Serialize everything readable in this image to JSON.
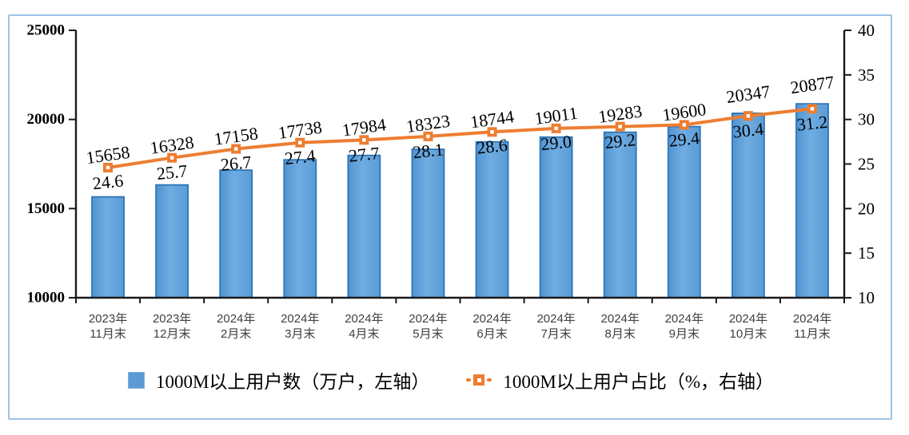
{
  "chart_data": {
    "type": "combo_bar_line",
    "title": "",
    "grid": false,
    "legend_position": "bottom",
    "categories": [
      {
        "line1": "2023年",
        "line2": "11月末"
      },
      {
        "line1": "2023年",
        "line2": "12月末"
      },
      {
        "line1": "2024年",
        "line2": "2月末"
      },
      {
        "line1": "2024年",
        "line2": "3月末"
      },
      {
        "line1": "2024年",
        "line2": "4月末"
      },
      {
        "line1": "2024年",
        "line2": "5月末"
      },
      {
        "line1": "2024年",
        "line2": "6月末"
      },
      {
        "line1": "2024年",
        "line2": "7月末"
      },
      {
        "line1": "2024年",
        "line2": "8月末"
      },
      {
        "line1": "2024年",
        "line2": "9月末"
      },
      {
        "line1": "2024年",
        "line2": "10月末"
      },
      {
        "line1": "2024年",
        "line2": "11月末"
      }
    ],
    "series": [
      {
        "name": "1000M以上用户数（万户，左轴）",
        "type": "bar",
        "axis": "left",
        "values": [
          15658,
          16328,
          17158,
          17738,
          17984,
          18323,
          18744,
          19011,
          19283,
          19600,
          20347,
          20877
        ],
        "data_labels": [
          "15658",
          "16328",
          "17158",
          "17738",
          "17984",
          "18323",
          "18744",
          "19011",
          "19283",
          "19600",
          "20347",
          "20877"
        ]
      },
      {
        "name": "1000M以上用户占比（%，右轴）",
        "type": "line",
        "axis": "right",
        "values": [
          24.6,
          25.7,
          26.7,
          27.4,
          27.7,
          28.1,
          28.6,
          29.0,
          29.2,
          29.4,
          30.4,
          31.2
        ],
        "data_labels": [
          "24.6",
          "25.7",
          "26.7",
          "27.4",
          "27.7",
          "28.1",
          "28.6",
          "29.0",
          "29.2",
          "29.4",
          "30.4",
          "31.2"
        ]
      }
    ],
    "left_axis": {
      "min": 10000,
      "max": 25000,
      "step": 5000,
      "tick_labels": [
        "10000",
        "15000",
        "20000",
        "25000"
      ]
    },
    "right_axis": {
      "min": 10,
      "max": 40,
      "step": 5,
      "tick_labels": [
        "10",
        "15",
        "20",
        "25",
        "30",
        "35",
        "40"
      ]
    },
    "colors": {
      "bar_fill": "#5B9BD5",
      "bar_fill_light": "#6FACE2",
      "bar_fill_dark": "#5094D2",
      "bar_border": "#2E75B6",
      "line": "#ED7D31",
      "marker_center": "#FFFFFF",
      "frame_border": "#9DC3E6",
      "axis_line": "#1A1A1A",
      "axis_text": "#000000",
      "category_text": "#404040"
    }
  }
}
